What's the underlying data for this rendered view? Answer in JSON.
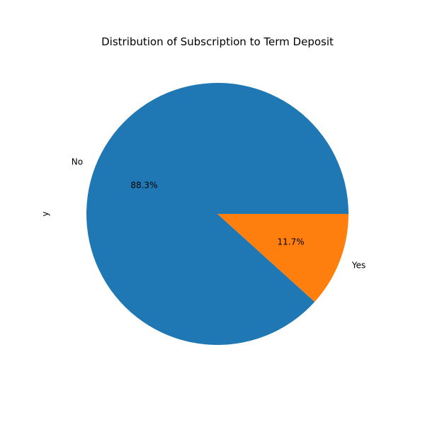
{
  "chart_data": {
    "type": "pie",
    "title": "Distribution of Subscription to Term Deposit",
    "ylabel": "y",
    "slices": [
      {
        "label": "No",
        "value": 88.3,
        "pct_label": "88.3%",
        "color": "#1f77b4"
      },
      {
        "label": "Yes",
        "value": 11.7,
        "pct_label": "11.7%",
        "color": "#ff7f0e"
      }
    ],
    "start_angle_deg": 0,
    "direction": "counterclockwise"
  }
}
